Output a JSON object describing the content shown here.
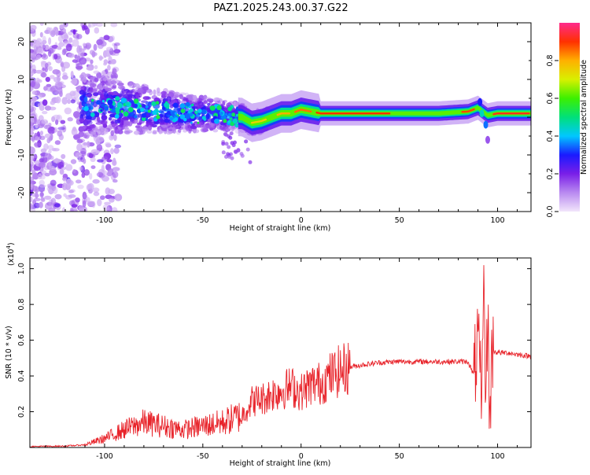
{
  "title": "PAZ1.2025.243.00.37.G22",
  "colors": {
    "snr_line": "#e8232a",
    "axis": "#000000"
  },
  "chart_data": [
    {
      "type": "heatmap",
      "title": "PAZ1.2025.243.00.37.G22",
      "xlabel": "Height of straight line (km)",
      "ylabel": "Frequency (Hz)",
      "xlim": [
        -138,
        117
      ],
      "ylim": [
        -25,
        25
      ],
      "x_ticks": [
        -100,
        -50,
        0,
        50,
        100
      ],
      "x_tick_labels": [
        "-100",
        "-50",
        "0",
        "50",
        "100"
      ],
      "y_ticks": [
        -20,
        -10,
        0,
        10,
        20
      ],
      "y_tick_labels": [
        "-20",
        "-10",
        "0",
        "10",
        "20"
      ],
      "colorbar": {
        "label": "Normalized spectral amplitude",
        "range": [
          0,
          1
        ],
        "ticks": [
          0.0,
          0.2,
          0.4,
          0.6,
          0.8
        ],
        "tick_labels": [
          "0.0",
          "0.2",
          "0.4",
          "0.6",
          "0.8"
        ],
        "colormap": [
          "#f2e6fb",
          "#b98af0",
          "#7a1fe8",
          "#1a1aff",
          "#00c8ff",
          "#00e07a",
          "#3cf000",
          "#d8f000",
          "#ffb000",
          "#ff3000",
          "#ff2a8c"
        ]
      },
      "ridge": {
        "x": [
          -112,
          -100,
          -90,
          -80,
          -70,
          -60,
          -50,
          -40,
          -30,
          -25,
          -20,
          -15,
          -10,
          -5,
          0,
          5,
          10,
          20,
          30,
          50,
          70,
          85,
          90,
          95,
          100,
          117
        ],
        "frequency": [
          3.0,
          3.0,
          2.5,
          2.0,
          1.5,
          1.0,
          1.0,
          0.5,
          0.0,
          -1.5,
          -1.0,
          0.0,
          1.0,
          1.0,
          2.0,
          1.5,
          1.0,
          1.0,
          1.0,
          1.0,
          1.0,
          1.5,
          2.5,
          0.5,
          1.0,
          1.0
        ]
      }
    },
    {
      "type": "line",
      "xlabel": "Height of straight line (km)",
      "ylabel": "SNR (10 * v/v)",
      "scale_label": "(x10",
      "scale_exponent": "4",
      "xlim": [
        -138,
        117
      ],
      "ylim": [
        0,
        1.06
      ],
      "x_ticks": [
        -100,
        -50,
        0,
        50,
        100
      ],
      "x_tick_labels": [
        "-100",
        "-50",
        "0",
        "50",
        "100"
      ],
      "y_ticks": [
        0.2,
        0.4,
        0.6,
        0.8,
        1.0
      ],
      "y_tick_labels": [
        "0.2",
        "0.4",
        "0.6",
        "0.8",
        "1.0"
      ],
      "series": [
        {
          "name": "SNR",
          "x": [
            -138,
            -120,
            -110,
            -100,
            -90,
            -80,
            -70,
            -60,
            -50,
            -40,
            -30,
            -25,
            -20,
            -15,
            -10,
            -5,
            0,
            5,
            10,
            15,
            20,
            25,
            30,
            40,
            50,
            60,
            70,
            80,
            85,
            88,
            90,
            92,
            93,
            94,
            95,
            96,
            97,
            98,
            100,
            105,
            110,
            117
          ],
          "values": [
            0.005,
            0.008,
            0.015,
            0.05,
            0.1,
            0.14,
            0.12,
            0.1,
            0.12,
            0.14,
            0.18,
            0.26,
            0.27,
            0.3,
            0.32,
            0.34,
            0.31,
            0.35,
            0.36,
            0.4,
            0.43,
            0.45,
            0.46,
            0.475,
            0.48,
            0.48,
            0.48,
            0.48,
            0.48,
            0.4,
            0.6,
            0.2,
            1.02,
            0.2,
            0.8,
            0.1,
            0.52,
            0.54,
            0.53,
            0.53,
            0.52,
            0.51
          ]
        }
      ]
    }
  ]
}
